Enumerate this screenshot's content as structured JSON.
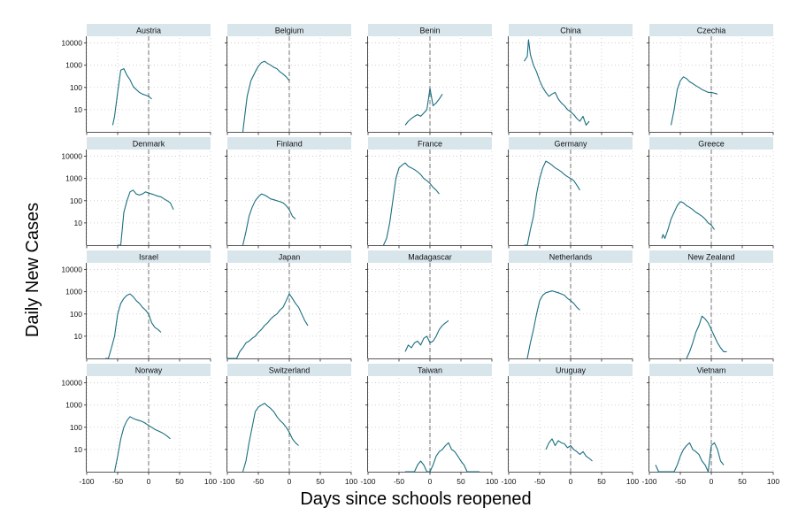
{
  "chart_data": {
    "type": "line",
    "layout": "small-multiples",
    "xlabel": "Days since schools reopened",
    "ylabel": "Daily New Cases",
    "y_scale": "log",
    "x_ticks": [
      -100,
      -50,
      0,
      50,
      100
    ],
    "y_ticks": [
      10,
      100,
      1000,
      10000
    ],
    "xlim": [
      -100,
      100
    ],
    "ylim": [
      1,
      20000
    ],
    "reference_line_x": 0,
    "grid": "dotted",
    "line_color": "#1a6f80",
    "reference_color": "#8a8a8a",
    "panel_header_color": "#d8e6ec",
    "panels": [
      {
        "name": "Austria",
        "x": [
          -58,
          -55,
          -50,
          -45,
          -40,
          -35,
          -30,
          -25,
          -20,
          -15,
          -10,
          -5,
          0,
          5
        ],
        "y": [
          2,
          5,
          60,
          600,
          700,
          350,
          220,
          110,
          80,
          60,
          50,
          45,
          40,
          30
        ]
      },
      {
        "name": "Belgium",
        "x": [
          -75,
          -72,
          -68,
          -62,
          -55,
          -50,
          -45,
          -40,
          -35,
          -30,
          -25,
          -20,
          -15,
          -10,
          -5,
          0
        ],
        "y": [
          1,
          5,
          40,
          200,
          500,
          900,
          1300,
          1500,
          1200,
          1000,
          800,
          700,
          500,
          400,
          300,
          200
        ]
      },
      {
        "name": "Benin",
        "x": [
          -40,
          -35,
          -30,
          -25,
          -20,
          -15,
          -10,
          -5,
          0,
          5,
          10,
          15,
          20
        ],
        "y": [
          2,
          3,
          4,
          5,
          6,
          5,
          7,
          10,
          90,
          15,
          20,
          30,
          50
        ]
      },
      {
        "name": "China",
        "x": [
          -75,
          -70,
          -68,
          -65,
          -60,
          -55,
          -50,
          -45,
          -40,
          -35,
          -30,
          -25,
          -20,
          -15,
          -10,
          -5,
          0,
          5,
          10,
          15,
          20,
          25,
          30
        ],
        "y": [
          1500,
          2500,
          14000,
          3000,
          1000,
          500,
          200,
          100,
          60,
          40,
          50,
          60,
          30,
          20,
          15,
          10,
          8,
          6,
          4,
          3,
          5,
          2,
          3
        ]
      },
      {
        "name": "Czechia",
        "x": [
          -65,
          -60,
          -55,
          -50,
          -45,
          -40,
          -35,
          -30,
          -25,
          -20,
          -15,
          -10,
          -5,
          0,
          5,
          10
        ],
        "y": [
          2,
          10,
          80,
          200,
          300,
          250,
          180,
          150,
          120,
          100,
          80,
          70,
          60,
          60,
          55,
          50
        ]
      },
      {
        "name": "Denmark",
        "x": [
          -50,
          -45,
          -40,
          -35,
          -30,
          -25,
          -20,
          -15,
          -10,
          -5,
          0,
          5,
          10,
          15,
          20,
          25,
          30,
          35,
          40
        ],
        "y": [
          1,
          1,
          30,
          100,
          250,
          300,
          200,
          180,
          200,
          250,
          220,
          200,
          180,
          160,
          150,
          120,
          100,
          80,
          40
        ]
      },
      {
        "name": "Finland",
        "x": [
          -75,
          -70,
          -65,
          -60,
          -55,
          -50,
          -45,
          -40,
          -35,
          -30,
          -25,
          -20,
          -15,
          -10,
          -5,
          0,
          5,
          10
        ],
        "y": [
          1,
          4,
          20,
          50,
          100,
          150,
          200,
          180,
          150,
          120,
          110,
          100,
          90,
          80,
          60,
          40,
          20,
          15
        ]
      },
      {
        "name": "France",
        "x": [
          -75,
          -70,
          -65,
          -60,
          -55,
          -50,
          -45,
          -40,
          -35,
          -30,
          -25,
          -20,
          -15,
          -10,
          -5,
          0,
          5,
          10,
          15
        ],
        "y": [
          1,
          2,
          10,
          100,
          1000,
          3000,
          4000,
          5000,
          3500,
          3000,
          2500,
          2000,
          1500,
          1000,
          800,
          600,
          400,
          300,
          200
        ]
      },
      {
        "name": "Germany",
        "x": [
          -75,
          -70,
          -65,
          -60,
          -55,
          -50,
          -45,
          -40,
          -35,
          -30,
          -25,
          -20,
          -15,
          -10,
          -5,
          0,
          5,
          10,
          15
        ],
        "y": [
          1,
          1,
          5,
          20,
          200,
          1000,
          3000,
          6000,
          5000,
          4000,
          3000,
          2500,
          2000,
          1500,
          1200,
          1000,
          800,
          500,
          300
        ]
      },
      {
        "name": "Greece",
        "x": [
          -80,
          -78,
          -75,
          -70,
          -65,
          -60,
          -55,
          -50,
          -45,
          -40,
          -35,
          -30,
          -25,
          -20,
          -15,
          -10,
          -5,
          0,
          5
        ],
        "y": [
          2,
          3,
          2,
          5,
          15,
          30,
          60,
          90,
          80,
          60,
          50,
          40,
          30,
          25,
          20,
          15,
          10,
          8,
          5
        ]
      },
      {
        "name": "Israel",
        "x": [
          -70,
          -65,
          -60,
          -55,
          -50,
          -45,
          -40,
          -35,
          -30,
          -25,
          -20,
          -15,
          -10,
          -5,
          0,
          5,
          10,
          15,
          20
        ],
        "y": [
          1,
          1,
          3,
          10,
          100,
          300,
          500,
          700,
          800,
          600,
          400,
          300,
          200,
          150,
          100,
          40,
          25,
          20,
          15
        ]
      },
      {
        "name": "Japan",
        "x": [
          -100,
          -95,
          -90,
          -85,
          -80,
          -75,
          -70,
          -65,
          -60,
          -55,
          -50,
          -45,
          -40,
          -35,
          -30,
          -25,
          -20,
          -15,
          -10,
          -5,
          0,
          5,
          10,
          15,
          20,
          25,
          30
        ],
        "y": [
          1,
          1,
          1,
          1,
          2,
          3,
          5,
          6,
          8,
          10,
          15,
          20,
          30,
          40,
          60,
          80,
          100,
          150,
          200,
          400,
          800,
          500,
          300,
          200,
          100,
          50,
          30
        ]
      },
      {
        "name": "Madagascar",
        "x": [
          -40,
          -35,
          -30,
          -25,
          -20,
          -15,
          -10,
          -5,
          0,
          5,
          10,
          15,
          20,
          25,
          30
        ],
        "y": [
          2,
          4,
          3,
          5,
          6,
          4,
          8,
          10,
          5,
          6,
          10,
          20,
          30,
          40,
          50
        ]
      },
      {
        "name": "Netherlands",
        "x": [
          -70,
          -65,
          -60,
          -55,
          -50,
          -45,
          -40,
          -35,
          -30,
          -25,
          -20,
          -15,
          -10,
          -5,
          0,
          5,
          10,
          15
        ],
        "y": [
          1,
          5,
          20,
          100,
          400,
          700,
          900,
          1000,
          1100,
          1000,
          900,
          800,
          700,
          500,
          400,
          300,
          200,
          150
        ]
      },
      {
        "name": "New Zealand",
        "x": [
          -40,
          -35,
          -30,
          -25,
          -20,
          -15,
          -10,
          -5,
          0,
          5,
          10,
          15,
          20,
          25
        ],
        "y": [
          1,
          2,
          5,
          15,
          30,
          80,
          60,
          40,
          20,
          10,
          5,
          3,
          2,
          2
        ]
      },
      {
        "name": "Norway",
        "x": [
          -55,
          -50,
          -45,
          -40,
          -35,
          -30,
          -25,
          -20,
          -15,
          -10,
          -5,
          0,
          5,
          10,
          15,
          20,
          25,
          30,
          35
        ],
        "y": [
          1,
          5,
          30,
          100,
          200,
          300,
          250,
          220,
          200,
          180,
          150,
          120,
          100,
          80,
          70,
          60,
          50,
          40,
          30
        ]
      },
      {
        "name": "Switzerland",
        "x": [
          -75,
          -70,
          -65,
          -60,
          -55,
          -50,
          -45,
          -40,
          -35,
          -30,
          -25,
          -20,
          -15,
          -10,
          -5,
          0,
          5,
          10,
          15
        ],
        "y": [
          1,
          3,
          20,
          100,
          500,
          800,
          1000,
          1200,
          900,
          700,
          500,
          300,
          200,
          150,
          100,
          60,
          30,
          20,
          15
        ]
      },
      {
        "name": "Taiwan",
        "x": [
          -40,
          -35,
          -30,
          -25,
          -20,
          -15,
          -10,
          -5,
          0,
          5,
          10,
          15,
          20,
          25,
          30,
          35,
          40,
          45,
          50,
          55,
          60,
          65,
          70,
          75,
          80
        ],
        "y": [
          1,
          1,
          1,
          1,
          2,
          3,
          2,
          1,
          1,
          2,
          5,
          8,
          10,
          15,
          20,
          10,
          8,
          5,
          3,
          2,
          1,
          1,
          1,
          1,
          1
        ]
      },
      {
        "name": "Uruguay",
        "x": [
          -40,
          -35,
          -30,
          -25,
          -20,
          -15,
          -10,
          -5,
          0,
          5,
          10,
          15,
          20,
          25,
          30,
          35
        ],
        "y": [
          10,
          20,
          30,
          15,
          25,
          20,
          18,
          12,
          15,
          10,
          8,
          6,
          8,
          5,
          4,
          3
        ]
      },
      {
        "name": "Vietnam",
        "x": [
          -90,
          -85,
          -80,
          -75,
          -70,
          -65,
          -60,
          -55,
          -50,
          -45,
          -40,
          -35,
          -30,
          -25,
          -20,
          -15,
          -10,
          -5,
          0,
          5,
          10,
          15,
          20
        ],
        "y": [
          2,
          1,
          1,
          1,
          1,
          1,
          1,
          2,
          5,
          10,
          15,
          20,
          10,
          8,
          6,
          3,
          2,
          1,
          15,
          20,
          10,
          3,
          2
        ]
      }
    ]
  }
}
